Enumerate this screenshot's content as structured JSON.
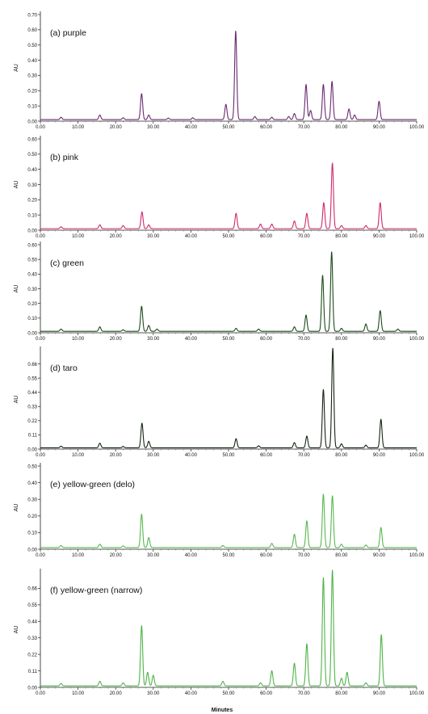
{
  "xlabel": "Minutes",
  "chart_data": [
    {
      "type": "line",
      "title": "(a) purple",
      "ylabel": "AU",
      "color": "#6a2a6e",
      "xlim": [
        0,
        100
      ],
      "ylim": [
        0,
        0.7
      ],
      "xticks": [
        "0.00",
        "10.00",
        "20.00",
        "30.00",
        "40.00",
        "50.00",
        "60.00",
        "70.00",
        "80.00",
        "90.00",
        "100.00"
      ],
      "yticks": [
        "0.00",
        "0.10",
        "0.20",
        "0.30",
        "0.40",
        "0.50",
        "0.60",
        "0.70"
      ],
      "ytick_values": [
        0,
        0.1,
        0.2,
        0.3,
        0.4,
        0.5,
        0.6,
        0.7
      ],
      "baseline": 0.01,
      "peaks": [
        {
          "x": 5.5,
          "y": 0.015
        },
        {
          "x": 15.8,
          "y": 0.03
        },
        {
          "x": 22.0,
          "y": 0.012
        },
        {
          "x": 26.9,
          "y": 0.17
        },
        {
          "x": 28.8,
          "y": 0.03
        },
        {
          "x": 34.0,
          "y": 0.01
        },
        {
          "x": 40.5,
          "y": 0.012
        },
        {
          "x": 49.3,
          "y": 0.1
        },
        {
          "x": 51.9,
          "y": 0.58
        },
        {
          "x": 57.0,
          "y": 0.02
        },
        {
          "x": 61.5,
          "y": 0.015
        },
        {
          "x": 66.0,
          "y": 0.02
        },
        {
          "x": 67.5,
          "y": 0.04
        },
        {
          "x": 70.6,
          "y": 0.23
        },
        {
          "x": 71.8,
          "y": 0.06
        },
        {
          "x": 75.2,
          "y": 0.23
        },
        {
          "x": 77.5,
          "y": 0.25
        },
        {
          "x": 82.0,
          "y": 0.07
        },
        {
          "x": 83.5,
          "y": 0.03
        },
        {
          "x": 90.0,
          "y": 0.12
        }
      ]
    },
    {
      "type": "line",
      "title": "(b) pink",
      "ylabel": "AU",
      "color": "#d0286a",
      "xlim": [
        0,
        100
      ],
      "ylim": [
        0,
        0.6
      ],
      "xticks": [
        "0.00",
        "10.00",
        "20.00",
        "30.00",
        "40.00",
        "50.00",
        "60.00",
        "70.00",
        "80.00",
        "90.00",
        "100.00"
      ],
      "yticks": [
        "0.00",
        "0.10",
        "0.20",
        "0.30",
        "0.40",
        "0.50",
        "0.60"
      ],
      "ytick_values": [
        0,
        0.1,
        0.2,
        0.3,
        0.4,
        0.5,
        0.6
      ],
      "baseline": 0.01,
      "peaks": [
        {
          "x": 5.5,
          "y": 0.012
        },
        {
          "x": 15.8,
          "y": 0.025
        },
        {
          "x": 22.0,
          "y": 0.02
        },
        {
          "x": 27.0,
          "y": 0.11
        },
        {
          "x": 28.8,
          "y": 0.025
        },
        {
          "x": 52.0,
          "y": 0.1
        },
        {
          "x": 58.5,
          "y": 0.03
        },
        {
          "x": 61.5,
          "y": 0.03
        },
        {
          "x": 67.5,
          "y": 0.05
        },
        {
          "x": 70.8,
          "y": 0.1
        },
        {
          "x": 75.3,
          "y": 0.17
        },
        {
          "x": 77.6,
          "y": 0.43
        },
        {
          "x": 80.0,
          "y": 0.02
        },
        {
          "x": 86.5,
          "y": 0.02
        },
        {
          "x": 90.3,
          "y": 0.17
        }
      ]
    },
    {
      "type": "line",
      "title": "(c) green",
      "ylabel": "AU",
      "color": "#1f4a1c",
      "xlim": [
        0,
        100
      ],
      "ylim": [
        0,
        0.6
      ],
      "xticks": [
        "0.00",
        "10.00",
        "20.00",
        "30.00",
        "40.00",
        "50.00",
        "60.00",
        "70.00",
        "80.00",
        "90.00",
        "100.00"
      ],
      "yticks": [
        "0.00",
        "0.10",
        "0.20",
        "0.30",
        "0.40",
        "0.50",
        "0.60"
      ],
      "ytick_values": [
        0,
        0.1,
        0.2,
        0.3,
        0.4,
        0.5,
        0.6
      ],
      "baseline": 0.01,
      "peaks": [
        {
          "x": 5.5,
          "y": 0.015
        },
        {
          "x": 15.8,
          "y": 0.03
        },
        {
          "x": 22.0,
          "y": 0.01
        },
        {
          "x": 26.9,
          "y": 0.17
        },
        {
          "x": 28.8,
          "y": 0.04
        },
        {
          "x": 31.0,
          "y": 0.015
        },
        {
          "x": 52.0,
          "y": 0.02
        },
        {
          "x": 58.0,
          "y": 0.015
        },
        {
          "x": 67.5,
          "y": 0.03
        },
        {
          "x": 70.6,
          "y": 0.11
        },
        {
          "x": 75.0,
          "y": 0.38
        },
        {
          "x": 77.4,
          "y": 0.54
        },
        {
          "x": 80.0,
          "y": 0.02
        },
        {
          "x": 86.5,
          "y": 0.05
        },
        {
          "x": 90.3,
          "y": 0.14
        },
        {
          "x": 95.0,
          "y": 0.015
        }
      ]
    },
    {
      "type": "line",
      "title": "(d) taro",
      "ylabel": "AU",
      "color": "#142414",
      "xlim": [
        0,
        100
      ],
      "ylim": [
        0,
        0.77
      ],
      "xticks": [
        "0.00",
        "10.00",
        "20.00",
        "30.00",
        "40.00",
        "50.00",
        "60.00",
        "70.00",
        "80.00",
        "90.00",
        "100.00"
      ],
      "yticks": [
        "0.00",
        "0.11",
        "0.22",
        "0.33",
        "0.44",
        "0.55",
        "0.66"
      ],
      "ytick_values": [
        0,
        0.11,
        0.22,
        0.33,
        0.44,
        0.55,
        0.66
      ],
      "baseline": 0.01,
      "peaks": [
        {
          "x": 5.5,
          "y": 0.012
        },
        {
          "x": 15.8,
          "y": 0.035
        },
        {
          "x": 22.0,
          "y": 0.01
        },
        {
          "x": 27.0,
          "y": 0.19
        },
        {
          "x": 28.8,
          "y": 0.05
        },
        {
          "x": 52.0,
          "y": 0.07
        },
        {
          "x": 58.0,
          "y": 0.015
        },
        {
          "x": 67.5,
          "y": 0.04
        },
        {
          "x": 70.8,
          "y": 0.09
        },
        {
          "x": 75.2,
          "y": 0.45
        },
        {
          "x": 77.7,
          "y": 0.77
        },
        {
          "x": 80.0,
          "y": 0.03
        },
        {
          "x": 86.5,
          "y": 0.02
        },
        {
          "x": 90.5,
          "y": 0.22
        }
      ]
    },
    {
      "type": "line",
      "title": "(e) yellow-green (delo)",
      "ylabel": "AU",
      "color": "#57b84e",
      "xlim": [
        0,
        100
      ],
      "ylim": [
        0,
        0.5
      ],
      "xticks": [
        "0.00",
        "10.00",
        "20.00",
        "30.00",
        "40.00",
        "50.00",
        "60.00",
        "70.00",
        "80.00",
        "90.00",
        "100.00"
      ],
      "yticks": [
        "0.00",
        "0.10",
        "0.20",
        "0.30",
        "0.40",
        "0.50"
      ],
      "ytick_values": [
        0,
        0.1,
        0.2,
        0.3,
        0.4,
        0.5
      ],
      "baseline": 0.01,
      "peaks": [
        {
          "x": 5.5,
          "y": 0.012
        },
        {
          "x": 15.8,
          "y": 0.02
        },
        {
          "x": 22.0,
          "y": 0.01
        },
        {
          "x": 26.9,
          "y": 0.2
        },
        {
          "x": 28.8,
          "y": 0.06
        },
        {
          "x": 48.5,
          "y": 0.012
        },
        {
          "x": 61.5,
          "y": 0.025
        },
        {
          "x": 67.5,
          "y": 0.08
        },
        {
          "x": 70.8,
          "y": 0.16
        },
        {
          "x": 75.2,
          "y": 0.32
        },
        {
          "x": 77.6,
          "y": 0.31
        },
        {
          "x": 80.0,
          "y": 0.02
        },
        {
          "x": 86.5,
          "y": 0.015
        },
        {
          "x": 90.5,
          "y": 0.12
        }
      ]
    },
    {
      "type": "line",
      "title": "(f) yellow-green (narrow)",
      "ylabel": "AU",
      "color": "#4fb348",
      "xlim": [
        0,
        100
      ],
      "ylim": [
        0,
        0.77
      ],
      "xticks": [
        "0.00",
        "10.00",
        "20.00",
        "30.00",
        "40.00",
        "50.00",
        "60.00",
        "70.00",
        "80.00",
        "90.00",
        "100.00"
      ],
      "yticks": [
        "0.00",
        "0.11",
        "0.22",
        "0.33",
        "0.44",
        "0.55",
        "0.66"
      ],
      "ytick_values": [
        0,
        0.11,
        0.22,
        0.33,
        0.44,
        0.55,
        0.66
      ],
      "baseline": 0.01,
      "peaks": [
        {
          "x": 5.5,
          "y": 0.015
        },
        {
          "x": 15.8,
          "y": 0.03
        },
        {
          "x": 22.0,
          "y": 0.02
        },
        {
          "x": 26.9,
          "y": 0.4
        },
        {
          "x": 28.5,
          "y": 0.09
        },
        {
          "x": 30.0,
          "y": 0.07
        },
        {
          "x": 48.5,
          "y": 0.03
        },
        {
          "x": 58.5,
          "y": 0.02
        },
        {
          "x": 61.5,
          "y": 0.1
        },
        {
          "x": 67.5,
          "y": 0.15
        },
        {
          "x": 70.8,
          "y": 0.28
        },
        {
          "x": 75.2,
          "y": 0.72
        },
        {
          "x": 77.6,
          "y": 0.77
        },
        {
          "x": 80.0,
          "y": 0.05
        },
        {
          "x": 81.5,
          "y": 0.09
        },
        {
          "x": 86.5,
          "y": 0.02
        },
        {
          "x": 90.6,
          "y": 0.34
        }
      ]
    }
  ]
}
